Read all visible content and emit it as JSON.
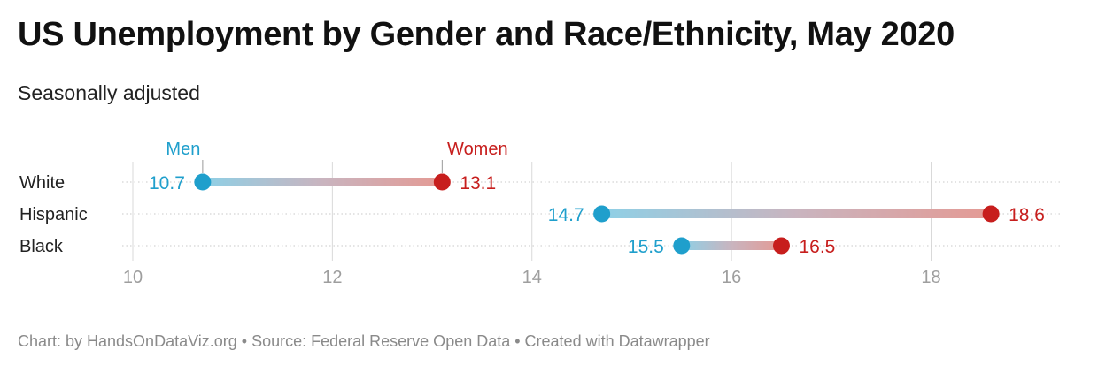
{
  "header": {
    "title": "US Unemployment by Gender and Race/Ethnicity, May 2020",
    "subtitle": "Seasonally adjusted"
  },
  "footer": {
    "text": "Chart: by HandsOnDataViz.org • Source: Federal Reserve Open Data • Created with Datawrapper"
  },
  "colors": {
    "men": "#1f9fcc",
    "women": "#c71e1d",
    "grid": "#d9d9d9",
    "tick": "#9e9e9e",
    "category": "#222222"
  },
  "chart_data": {
    "type": "dot-range",
    "title": "US Unemployment by Gender and Race/Ethnicity, May 2020",
    "subtitle": "Seasonally adjusted",
    "categories": [
      "White",
      "Hispanic",
      "Black"
    ],
    "series": [
      {
        "name": "Men",
        "values": [
          10.7,
          14.7,
          15.5
        ]
      },
      {
        "name": "Women",
        "values": [
          13.1,
          18.6,
          16.5
        ]
      }
    ],
    "xlim": [
      10,
      19.3
    ],
    "xticks": [
      10,
      12,
      14,
      16,
      18
    ],
    "grid": true,
    "legend": "inline labels above first row"
  }
}
